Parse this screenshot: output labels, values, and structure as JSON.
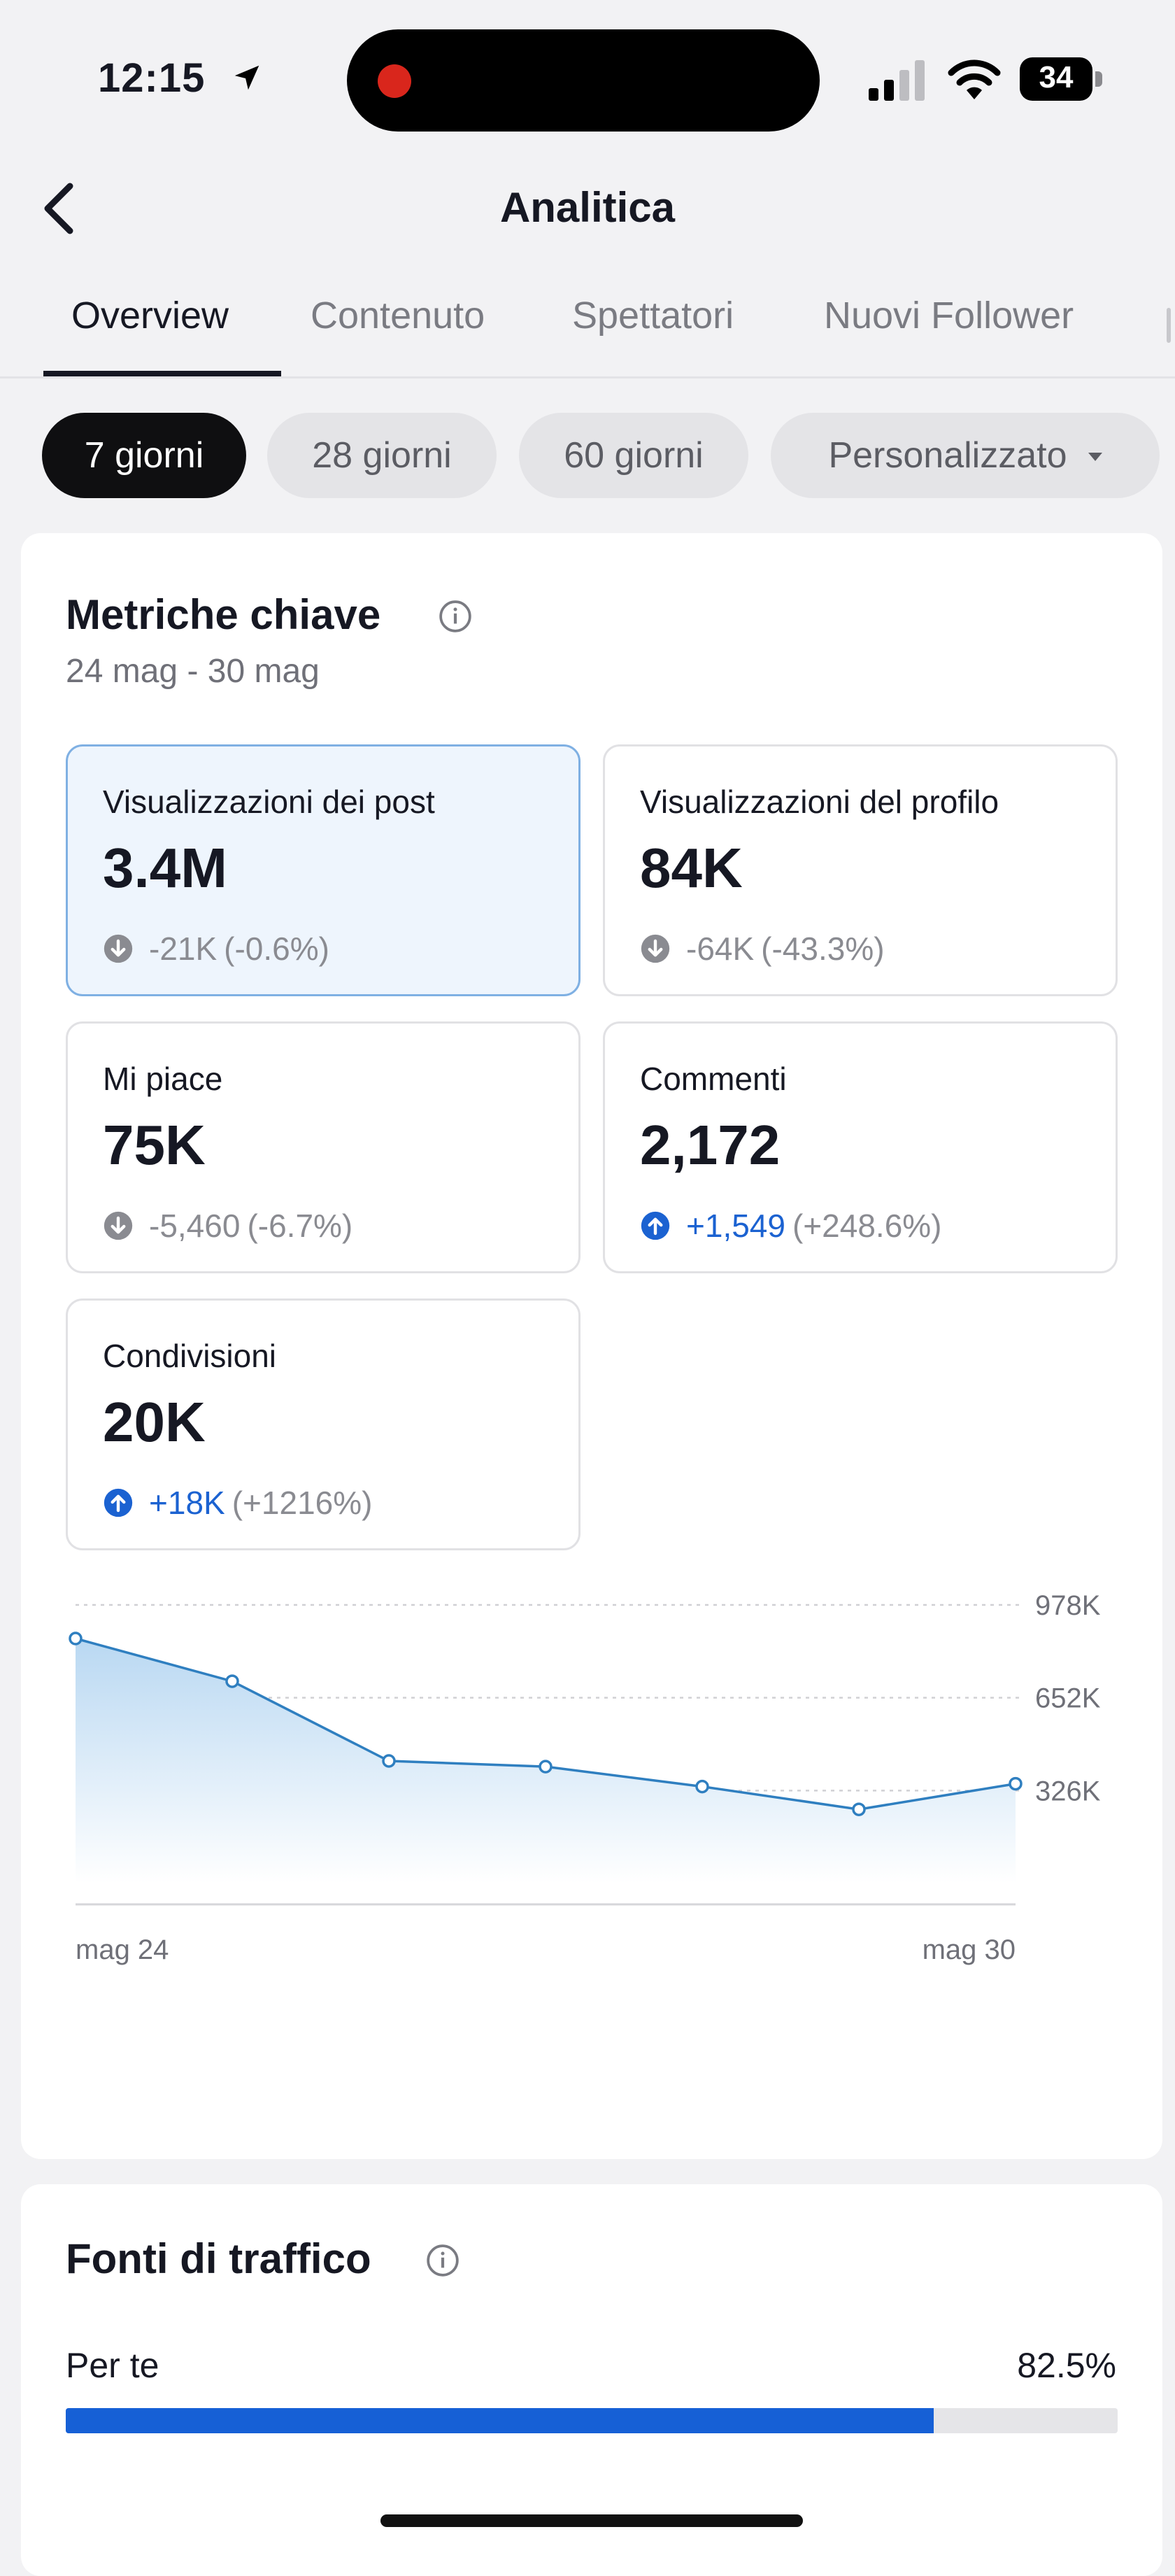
{
  "status_bar": {
    "time": "12:15",
    "battery": "34",
    "icons": [
      "location-arrow-icon",
      "signal-icon",
      "wifi-icon",
      "battery-icon"
    ]
  },
  "header": {
    "title": "Analitica",
    "back_icon": "chevron-left-icon"
  },
  "tabs": [
    {
      "label": "Overview",
      "active": true
    },
    {
      "label": "Contenuto",
      "active": false
    },
    {
      "label": "Spettatori",
      "active": false
    },
    {
      "label": "Nuovi Follower",
      "active": false
    }
  ],
  "period_chips": [
    {
      "label": "7 giorni",
      "active": true
    },
    {
      "label": "28 giorni",
      "active": false
    },
    {
      "label": "60 giorni",
      "active": false
    },
    {
      "label": "Personalizzato",
      "active": false,
      "has_dropdown": true
    }
  ],
  "key_metrics": {
    "title": "Metriche chiave",
    "date_range": "24 mag - 30 mag",
    "tiles": [
      {
        "label": "Visualizzazioni dei post",
        "value": "3.4M",
        "delta": "-21K",
        "delta_pct": "(-0.6%)",
        "direction": "down",
        "selected": true
      },
      {
        "label": "Visualizzazioni del profilo",
        "value": "84K",
        "delta": "-64K",
        "delta_pct": "(-43.3%)",
        "direction": "down",
        "selected": false
      },
      {
        "label": "Mi piace",
        "value": "75K",
        "delta": "-5,460",
        "delta_pct": "(-6.7%)",
        "direction": "down",
        "selected": false
      },
      {
        "label": "Commenti",
        "value": "2,172",
        "delta": "+1,549",
        "delta_pct": "(+248.6%)",
        "direction": "up",
        "selected": false
      },
      {
        "label": "Condivisioni",
        "value": "20K",
        "delta": "+18K",
        "delta_pct": "(+1216%)",
        "direction": "up",
        "selected": false
      }
    ]
  },
  "chart_data": {
    "type": "area",
    "x_tick_labels": [
      "mag 24",
      "mag 30"
    ],
    "y_tick_labels": [
      "978K",
      "652K",
      "326K"
    ],
    "y_ticks": [
      978000,
      652000,
      326000
    ],
    "ylim": [
      0,
      978000
    ],
    "grid": true,
    "series": [
      {
        "values": [
          860000,
          710000,
          430000,
          410000,
          340000,
          260000,
          350000
        ]
      }
    ],
    "colors": {
      "line": "#2f7fc0",
      "fill_top": "#b9d8f2",
      "fill_bottom": "#ffffff"
    }
  },
  "traffic_sources": {
    "title": "Fonti di traffico",
    "items": [
      {
        "label": "Per te",
        "percent_text": "82.5%",
        "fraction": 0.825
      }
    ],
    "bar_color": "#1660d6"
  }
}
